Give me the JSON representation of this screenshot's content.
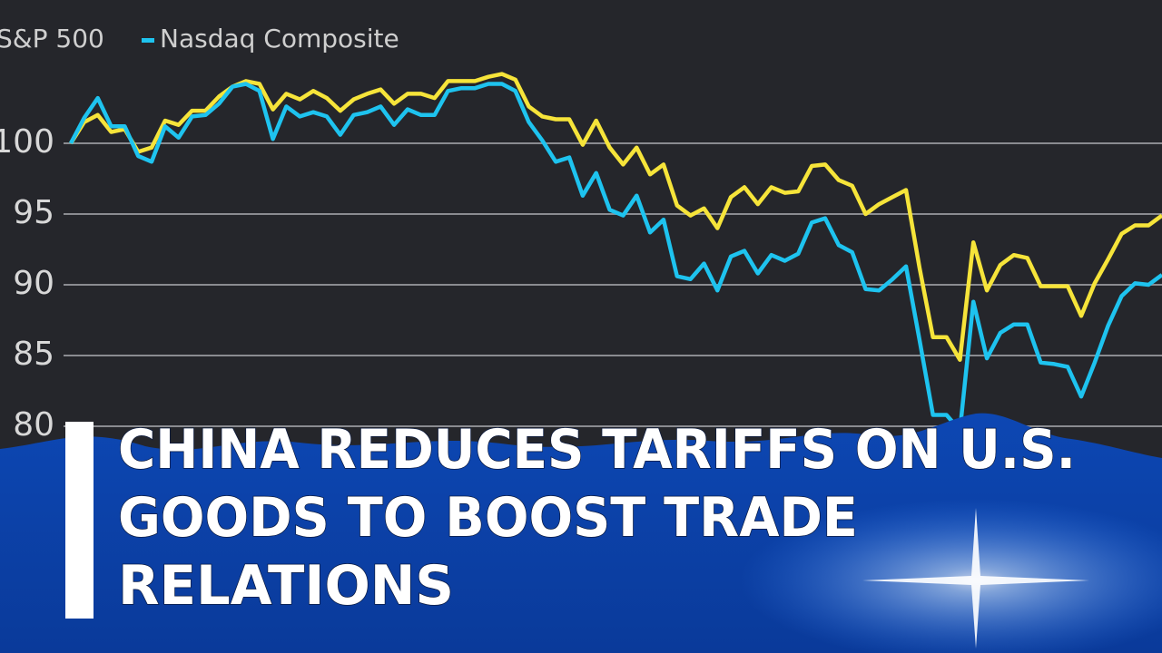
{
  "chart_data": {
    "type": "line",
    "series": [
      {
        "name": "S&P 500",
        "color": "#f6e43a",
        "values": [
          100.0,
          101.5,
          102.0,
          100.8,
          101.0,
          99.4,
          99.7,
          101.6,
          101.3,
          102.3,
          102.3,
          103.3,
          104.0,
          104.4,
          104.2,
          102.4,
          103.5,
          103.1,
          103.7,
          103.2,
          102.3,
          103.1,
          103.5,
          103.8,
          102.8,
          103.5,
          103.5,
          103.2,
          104.4,
          104.4,
          104.4,
          104.7,
          104.9,
          104.5,
          102.6,
          101.9,
          101.7,
          101.7,
          99.9,
          101.6,
          99.7,
          98.5,
          99.7,
          97.8,
          98.5,
          95.6,
          94.9,
          95.4,
          94.0,
          96.2,
          96.9,
          95.7,
          96.9,
          96.5,
          96.6,
          98.4,
          98.5,
          97.4,
          97.0,
          95.0,
          95.7,
          96.2,
          96.7,
          91.2,
          86.3,
          86.3,
          84.7,
          93.0,
          89.6,
          91.4,
          92.1,
          91.9,
          89.9,
          89.9,
          89.9,
          87.8,
          90.1,
          91.8,
          93.6,
          94.2,
          94.2,
          94.9
        ]
      },
      {
        "name": "Nasdaq Composite",
        "color": "#1ec3ef",
        "values": [
          100.0,
          101.8,
          103.2,
          101.2,
          101.2,
          99.1,
          98.7,
          101.2,
          100.4,
          101.9,
          102.0,
          102.8,
          104.0,
          104.2,
          103.7,
          100.3,
          102.6,
          101.9,
          102.2,
          101.9,
          100.6,
          102.0,
          102.2,
          102.6,
          101.3,
          102.4,
          102.0,
          102.0,
          103.7,
          103.9,
          103.9,
          104.2,
          104.2,
          103.7,
          101.5,
          100.2,
          98.7,
          99.0,
          96.3,
          97.9,
          95.3,
          94.9,
          96.3,
          93.7,
          94.6,
          90.6,
          90.4,
          91.5,
          89.6,
          92.0,
          92.4,
          90.8,
          92.1,
          91.7,
          92.2,
          94.4,
          94.7,
          92.8,
          92.3,
          89.7,
          89.6,
          90.4,
          91.3,
          86.1,
          80.8,
          80.8,
          79.7,
          88.8,
          84.8,
          86.6,
          87.2,
          87.2,
          84.5,
          84.4,
          84.2,
          82.1,
          84.5,
          87.1,
          89.2,
          90.1,
          90.0,
          90.7
        ]
      }
    ],
    "ylim": [
      75,
      110
    ],
    "yticks": [
      80,
      85,
      90,
      95,
      100
    ],
    "grid": true
  },
  "headline": {
    "lines": [
      "CHINA REDUCES TARIFFS ON U.S.",
      "GOODS TO BOOST TRADE",
      "RELATIONS"
    ]
  }
}
